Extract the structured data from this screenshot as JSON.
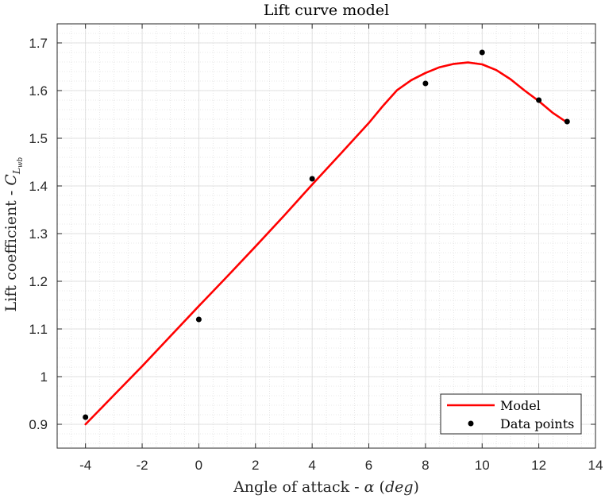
{
  "chart_data": {
    "type": "line",
    "title": "Lift curve model",
    "xlabel": "Angle of attack - α (deg)",
    "ylabel": "Lift coefficient - C",
    "ylabel_subscript": "Lwb",
    "xlim": [
      -5,
      14
    ],
    "ylim": [
      0.85,
      1.74
    ],
    "xticks": [
      -4,
      -2,
      0,
      2,
      4,
      6,
      8,
      10,
      12,
      14
    ],
    "yticks": [
      0.9,
      1,
      1.1,
      1.2,
      1.3,
      1.4,
      1.5,
      1.6,
      1.7
    ],
    "grid": true,
    "minor_grid": true,
    "legend_position": "bottom-right",
    "series": [
      {
        "name": "Model",
        "kind": "line",
        "color": "#ff0000",
        "x": [
          -4,
          -3,
          -2,
          -1,
          0,
          1,
          2,
          3,
          4,
          5,
          6,
          6.5,
          7,
          7.5,
          8,
          8.5,
          9,
          9.5,
          10,
          10.5,
          11,
          11.5,
          12,
          12.5,
          13
        ],
        "y": [
          0.9,
          0.961,
          1.022,
          1.085,
          1.148,
          1.21,
          1.273,
          1.337,
          1.403,
          1.467,
          1.532,
          1.568,
          1.601,
          1.622,
          1.637,
          1.649,
          1.656,
          1.659,
          1.655,
          1.643,
          1.624,
          1.6,
          1.578,
          1.553,
          1.533
        ]
      },
      {
        "name": "Data points",
        "kind": "scatter",
        "color": "#000000",
        "x": [
          -4,
          0,
          4,
          8,
          10,
          12,
          13
        ],
        "y": [
          0.915,
          1.12,
          1.415,
          1.615,
          1.68,
          1.58,
          1.535
        ]
      }
    ]
  }
}
